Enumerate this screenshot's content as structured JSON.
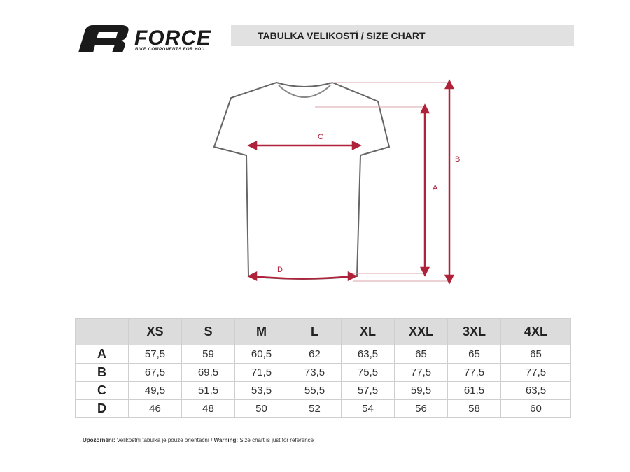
{
  "logo": {
    "brand": "FORCE",
    "tagline": "BIKE COMPONENTS FOR YOU"
  },
  "header": {
    "title": "TABULKA VELIKOSTÍ / SIZE CHART"
  },
  "diagram": {
    "labels": [
      "A",
      "B",
      "C",
      "D"
    ]
  },
  "table": {
    "columns": [
      "XS",
      "S",
      "M",
      "L",
      "XL",
      "XXL",
      "3XL",
      "4XL"
    ],
    "rows": [
      {
        "label": "A",
        "values": [
          "57,5",
          "59",
          "60,5",
          "62",
          "63,5",
          "65",
          "65",
          "65"
        ]
      },
      {
        "label": "B",
        "values": [
          "67,5",
          "69,5",
          "71,5",
          "73,5",
          "75,5",
          "77,5",
          "77,5",
          "77,5"
        ]
      },
      {
        "label": "C",
        "values": [
          "49,5",
          "51,5",
          "53,5",
          "55,5",
          "57,5",
          "59,5",
          "61,5",
          "63,5"
        ]
      },
      {
        "label": "D",
        "values": [
          "46",
          "48",
          "50",
          "52",
          "54",
          "56",
          "58",
          "60"
        ]
      }
    ]
  },
  "footnote": {
    "label_cz": "Upozornění:",
    "text_cz": "Velikostní tabulka je pouze orientační /",
    "label_en": "Warning:",
    "text_en": "Size chart is just for reference"
  }
}
